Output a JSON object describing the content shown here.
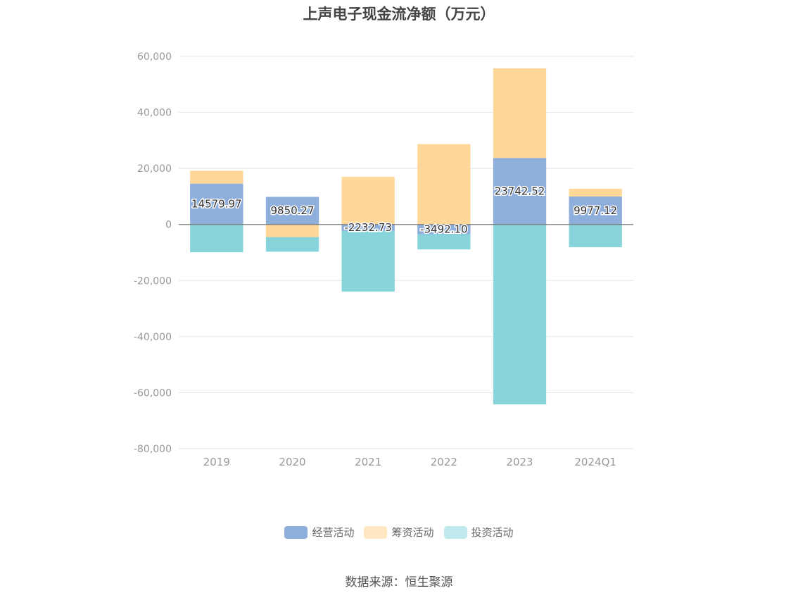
{
  "chart_data": {
    "type": "bar",
    "stacked": true,
    "title": "上声电子现金流净额（万元）",
    "categories": [
      "2019",
      "2020",
      "2021",
      "2022",
      "2023",
      "2024Q1"
    ],
    "series": [
      {
        "name": "经营活动",
        "color": "#8eaedb",
        "values": [
          14579.97,
          9850.27,
          -2232.73,
          -3492.1,
          23742.52,
          9977.12
        ],
        "labels": [
          "14579.97",
          "9850.27",
          "-2232.73",
          "-3492.10",
          "23742.52",
          "9977.12"
        ]
      },
      {
        "name": "筹资活动",
        "color": "#ffd899",
        "values": [
          4600,
          -4500,
          17000,
          28700,
          32000,
          2800
        ]
      },
      {
        "name": "投资活动",
        "color": "#87d5da",
        "values": [
          -9900,
          -5200,
          -21700,
          -5400,
          -64200,
          -8100
        ]
      }
    ],
    "ylim": [
      -80000,
      60000
    ],
    "yticks": [
      60000,
      40000,
      20000,
      0,
      -20000,
      -40000,
      -60000,
      -80000
    ],
    "ytick_labels": [
      "60,000",
      "40,000",
      "20,000",
      "0",
      "-20,000",
      "-40,000",
      "-60,000",
      "-80,000"
    ],
    "grid": true,
    "legend_position": "bottom"
  },
  "legend": [
    {
      "label": "经营活动",
      "color": "#8eaedb"
    },
    {
      "label": "筹资活动",
      "color": "#ffe7c2"
    },
    {
      "label": "投资活动",
      "color": "#bfe9ec"
    }
  ],
  "source": "数据来源：恒生聚源"
}
